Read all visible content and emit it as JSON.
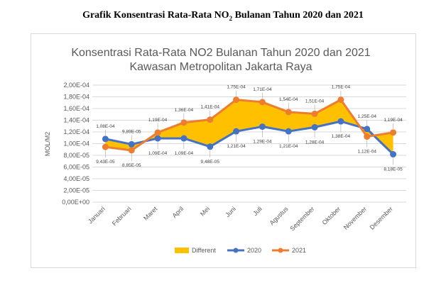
{
  "caption": {
    "pre": "Grafik Konsentrasi Rata-Rata NO",
    "sub": "2",
    "post": " Bulanan Tahun 2020 dan 2021"
  },
  "chart_data": {
    "type": "line",
    "title": [
      "Konsentrasi Rata-Rata NO2 Bulanan Tahun 2020 dan 2021",
      "Kawasan Metropolitan Jakarta Raya"
    ],
    "xlabel": "",
    "ylabel": "MOL/M2",
    "ylim": [
      0,
      0.0002
    ],
    "y_ticks": [
      "0,00E+00",
      "2,00E-05",
      "4,00E-05",
      "6,00E-05",
      "8,00E-05",
      "1,00E-04",
      "1,20E-04",
      "1,40E-04",
      "1,60E-04",
      "1,80E-04",
      "2,00E-04"
    ],
    "grid": true,
    "legend_position": "bottom",
    "categories": [
      "Januari",
      "Februari",
      "Maret",
      "April",
      "Mei",
      "Juni",
      "Juli",
      "Agustus",
      "September",
      "Oktober",
      "November",
      "Desember"
    ],
    "series": [
      {
        "name": "2020",
        "color": "#4472c4",
        "values": [
          0.000108,
          9.89e-05,
          0.000109,
          0.000109,
          9.48e-05,
          0.000121,
          0.000129,
          0.000121,
          0.000128,
          0.000138,
          0.000125,
          8.18e-05
        ],
        "labels": [
          "1,08E-04",
          "9,89E-05",
          "1,09E-04",
          "1,09E-04",
          "9,48E-05",
          "1,21E-04",
          "1,29E-04",
          "1,21E-04",
          "1,28E-04",
          "1,38E-04",
          "1,25E-04",
          "8,18E-05"
        ]
      },
      {
        "name": "2021",
        "color": "#ed7d31",
        "values": [
          9.43e-05,
          8.85e-05,
          0.000119,
          0.000136,
          0.000141,
          0.000175,
          0.000171,
          0.000154,
          0.000151,
          0.000175,
          0.000112,
          0.000119
        ],
        "labels": [
          "9,43E-05",
          "8,85E-05",
          "1,19E-04",
          "1,36E-04",
          "1,41E-04",
          "1,75E-04",
          "1,71E-04",
          "1,54E-04",
          "1,51E-04",
          "1,75E-04",
          "1,12E-04",
          "1,19E-04"
        ]
      }
    ],
    "area": {
      "name": "Different",
      "color": "#ffc000"
    }
  }
}
